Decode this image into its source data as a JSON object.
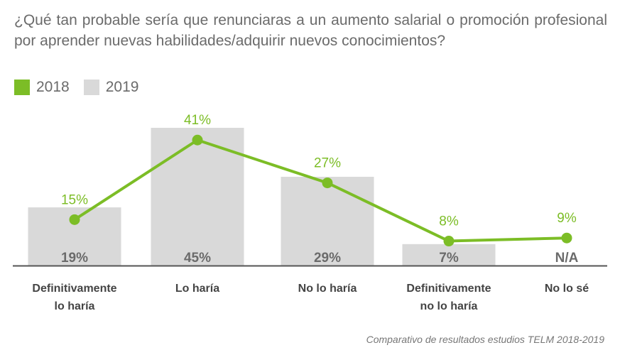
{
  "title": "¿Qué tan probable sería que renunciaras a un aumento salarial o promoción profesional por aprender nuevas habilidades/adquirir nuevos conocimientos?",
  "caption": "Comparativo de resultados estudios TELM 2018-2019",
  "colors": {
    "line": "#7cbd26",
    "bar": "#d9d9d9",
    "bar_label": "#6b6b6b",
    "axis": "#555555",
    "category": "#444444"
  },
  "chart_data": {
    "type": "bar",
    "categories": [
      [
        "Definitivamente",
        "lo haría"
      ],
      [
        "Lo haría"
      ],
      [
        "No lo haría"
      ],
      [
        "Definitivamente",
        "no lo haría"
      ],
      [
        "No lo sé"
      ]
    ],
    "series": [
      {
        "name": "2018",
        "type": "line",
        "values": [
          15,
          41,
          27,
          8,
          9
        ],
        "labels": [
          "15%",
          "41%",
          "27%",
          "8%",
          "9%"
        ]
      },
      {
        "name": "2019",
        "type": "bar",
        "values": [
          19,
          45,
          29,
          7,
          null
        ],
        "labels": [
          "19%",
          "45%",
          "29%",
          "7%",
          "N/A"
        ]
      }
    ],
    "ylim": [
      0,
      45
    ],
    "legend_position": "top-left",
    "grid": false
  }
}
